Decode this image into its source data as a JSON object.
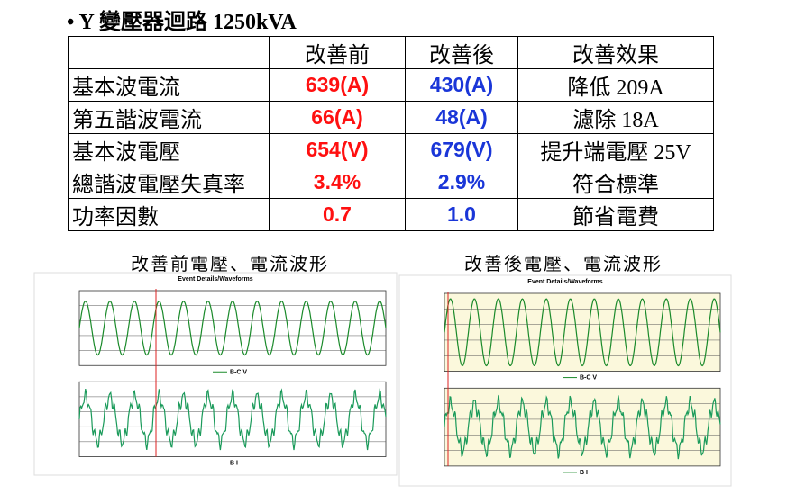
{
  "header": {
    "bullet": "•",
    "title": "Y 變壓器迴路 1250kVA"
  },
  "table": {
    "columns": [
      "",
      "改善前",
      "改善後",
      "改善效果"
    ],
    "rows": [
      [
        "基本波電流",
        "639(A)",
        "430(A)",
        "降低 209A"
      ],
      [
        "第五諧波電流",
        "66(A)",
        "48(A)",
        "濾除 18A"
      ],
      [
        "基本波電壓",
        "654(V)",
        "679(V)",
        "提升端電壓 25V"
      ],
      [
        "總諧波電壓失真率",
        "3.4%",
        "2.9%",
        "符合標準"
      ],
      [
        "功率因數",
        "0.7",
        "1.0",
        "節省電費"
      ]
    ]
  },
  "figures": [
    {
      "caption": "改善前電壓、電流波形",
      "window_title": "Event Details/Waveforms",
      "legend_top": "B-C V",
      "legend_bottom": "B I"
    },
    {
      "caption": "改善後電壓、電流波形",
      "window_title": "Event Details/Waveforms",
      "legend_top": "B-C V",
      "legend_bottom": "B I"
    }
  ]
}
